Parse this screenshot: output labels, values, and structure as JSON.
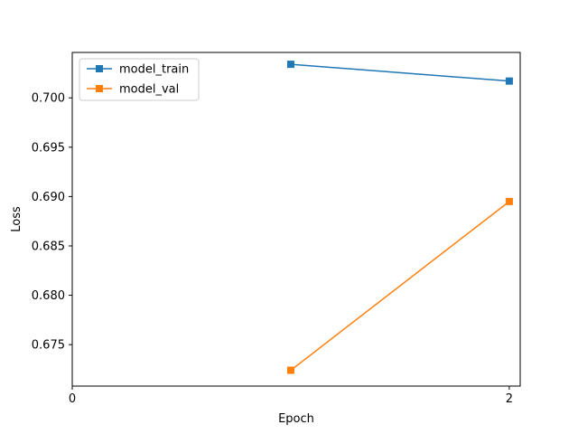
{
  "chart_data": {
    "type": "line",
    "xlabel": "Epoch",
    "ylabel": "Loss",
    "xlim": [
      0,
      2.05
    ],
    "ylim": [
      0.6708,
      0.7046
    ],
    "x_ticks": [
      0,
      2
    ],
    "x_tick_labels": [
      "0",
      "2"
    ],
    "y_ticks": [
      0.675,
      0.68,
      0.685,
      0.69,
      0.695,
      0.7
    ],
    "y_tick_labels": [
      "0.675",
      "0.680",
      "0.685",
      "0.690",
      "0.695",
      "0.700"
    ],
    "grid": false,
    "legend_position": "top-left",
    "series": [
      {
        "name": "model_train",
        "color": "#1f77b4",
        "marker": "square",
        "x": [
          1,
          2
        ],
        "y": [
          0.7034,
          0.7017
        ]
      },
      {
        "name": "model_val",
        "color": "#ff7f0e",
        "marker": "square",
        "x": [
          1,
          2
        ],
        "y": [
          0.6724,
          0.6895
        ]
      }
    ]
  }
}
